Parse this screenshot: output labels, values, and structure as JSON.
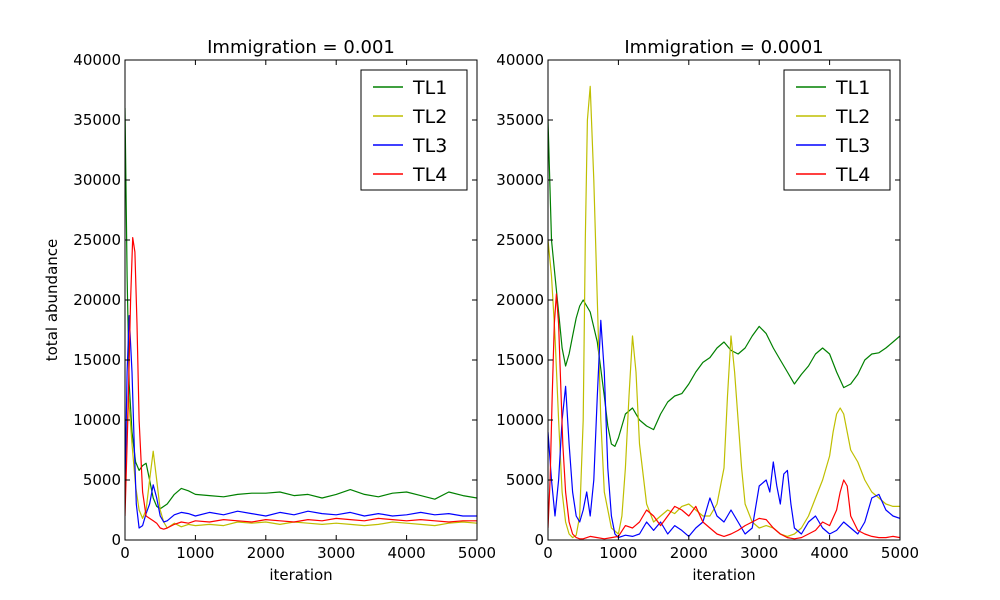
{
  "figure": {
    "ylabel": "total abundance"
  },
  "legend_colors": {
    "TL1": "#008000",
    "TL2": "#bfbf00",
    "TL3": "#0000ff",
    "TL4": "#ff0000"
  },
  "chart_data": [
    {
      "type": "line",
      "title": "Immigration = 0.001",
      "xlabel": "iteration",
      "ylabel": "total abundance",
      "xlim": [
        0,
        5000
      ],
      "ylim": [
        0,
        40000
      ],
      "xticks": [
        "0",
        "1000",
        "2000",
        "3000",
        "4000",
        "5000"
      ],
      "yticks": [
        "0",
        "5000",
        "10000",
        "15000",
        "20000",
        "25000",
        "30000",
        "35000",
        "40000"
      ],
      "legend_position": "top-right",
      "grid": false,
      "series": [
        {
          "name": "TL1",
          "color": "#008000",
          "x": [
            0,
            30,
            60,
            100,
            150,
            200,
            250,
            300,
            350,
            400,
            450,
            500,
            600,
            700,
            800,
            900,
            1000,
            1200,
            1400,
            1600,
            1800,
            2000,
            2200,
            2400,
            2600,
            2800,
            3000,
            3200,
            3400,
            3600,
            3800,
            4000,
            4200,
            4400,
            4600,
            4800,
            5000
          ],
          "y": [
            36000,
            22000,
            13000,
            9000,
            6500,
            5800,
            6200,
            6400,
            5000,
            3500,
            2800,
            2600,
            3000,
            3800,
            4300,
            4100,
            3800,
            3700,
            3600,
            3800,
            3900,
            3900,
            4000,
            3700,
            3800,
            3500,
            3800,
            4200,
            3800,
            3600,
            3900,
            4000,
            3700,
            3400,
            4000,
            3700,
            3500
          ]
        },
        {
          "name": "TL2",
          "color": "#bfbf00",
          "x": [
            0,
            50,
            100,
            150,
            200,
            250,
            300,
            350,
            400,
            450,
            500,
            550,
            600,
            700,
            800,
            900,
            1000,
            1200,
            1400,
            1600,
            1800,
            2000,
            2200,
            2400,
            2600,
            2800,
            3000,
            3200,
            3400,
            3600,
            3800,
            4000,
            4200,
            4400,
            4600,
            4800,
            5000
          ],
          "y": [
            4500,
            12000,
            8000,
            4500,
            2500,
            1800,
            2500,
            5000,
            7400,
            5000,
            2500,
            1500,
            1000,
            1400,
            1100,
            1300,
            1200,
            1300,
            1200,
            1500,
            1400,
            1500,
            1300,
            1500,
            1400,
            1300,
            1400,
            1300,
            1200,
            1300,
            1500,
            1400,
            1300,
            1200,
            1400,
            1500,
            1400
          ]
        },
        {
          "name": "TL3",
          "color": "#0000ff",
          "x": [
            0,
            30,
            60,
            100,
            130,
            160,
            200,
            250,
            300,
            350,
            400,
            450,
            500,
            550,
            600,
            700,
            800,
            900,
            1000,
            1200,
            1400,
            1600,
            1800,
            2000,
            2200,
            2400,
            2600,
            2800,
            3000,
            3200,
            3400,
            3600,
            3800,
            4000,
            4200,
            4400,
            4600,
            4800,
            5000
          ],
          "y": [
            4000,
            14000,
            18700,
            14000,
            8000,
            3000,
            1000,
            1200,
            2200,
            3000,
            4600,
            3500,
            2000,
            1500,
            1600,
            2100,
            2300,
            2200,
            2000,
            2300,
            2100,
            2400,
            2200,
            2000,
            2300,
            2100,
            2400,
            2200,
            2100,
            2300,
            2000,
            2200,
            2000,
            2100,
            2300,
            2100,
            2200,
            2000,
            2000
          ]
        },
        {
          "name": "TL4",
          "color": "#ff0000",
          "x": [
            0,
            40,
            80,
            110,
            140,
            170,
            200,
            250,
            300,
            350,
            400,
            450,
            500,
            550,
            600,
            700,
            800,
            900,
            1000,
            1200,
            1400,
            1600,
            1800,
            2000,
            2200,
            2400,
            2600,
            2800,
            3000,
            3200,
            3400,
            3600,
            3800,
            4000,
            4200,
            4400,
            4600,
            4800,
            5000
          ],
          "y": [
            2000,
            10000,
            20000,
            25200,
            24000,
            18000,
            10000,
            4000,
            2000,
            1800,
            1600,
            1400,
            1000,
            900,
            1000,
            1300,
            1500,
            1400,
            1600,
            1500,
            1700,
            1600,
            1500,
            1700,
            1600,
            1500,
            1700,
            1600,
            1800,
            1700,
            1600,
            1800,
            1700,
            1600,
            1700,
            1600,
            1500,
            1600,
            1600
          ]
        }
      ]
    },
    {
      "type": "line",
      "title": "Immigration = 0.0001",
      "xlabel": "iteration",
      "ylabel": "",
      "xlim": [
        0,
        5000
      ],
      "ylim": [
        0,
        40000
      ],
      "xticks": [
        "0",
        "1000",
        "2000",
        "3000",
        "4000",
        "5000"
      ],
      "yticks": [
        "0",
        "5000",
        "10000",
        "15000",
        "20000",
        "25000",
        "30000",
        "35000",
        "40000"
      ],
      "legend_position": "top-right",
      "grid": false,
      "series": [
        {
          "name": "TL1",
          "color": "#008000",
          "x": [
            0,
            50,
            100,
            150,
            200,
            250,
            300,
            350,
            400,
            450,
            500,
            550,
            600,
            700,
            800,
            850,
            900,
            950,
            1000,
            1100,
            1200,
            1300,
            1400,
            1500,
            1600,
            1700,
            1800,
            1900,
            2000,
            2100,
            2200,
            2300,
            2400,
            2500,
            2600,
            2700,
            2800,
            2900,
            3000,
            3100,
            3200,
            3300,
            3400,
            3500,
            3600,
            3700,
            3800,
            3900,
            4000,
            4100,
            4200,
            4300,
            4400,
            4500,
            4600,
            4700,
            4800,
            4900,
            5000
          ],
          "y": [
            35000,
            25000,
            22000,
            19000,
            16000,
            14500,
            15500,
            17000,
            18500,
            19500,
            20000,
            19500,
            19000,
            16500,
            12000,
            9500,
            8000,
            7800,
            8500,
            10500,
            11000,
            10000,
            9500,
            9200,
            10500,
            11500,
            12000,
            12200,
            13000,
            14000,
            14800,
            15200,
            16000,
            16500,
            15800,
            15500,
            16000,
            17000,
            17800,
            17200,
            16000,
            15000,
            14000,
            13000,
            13800,
            14500,
            15500,
            16000,
            15500,
            14000,
            12700,
            13000,
            13800,
            15000,
            15500,
            15600,
            16000,
            16500,
            17000
          ]
        },
        {
          "name": "TL2",
          "color": "#bfbf00",
          "x": [
            0,
            50,
            100,
            150,
            200,
            250,
            300,
            350,
            400,
            450,
            500,
            530,
            560,
            600,
            650,
            700,
            750,
            800,
            900,
            1000,
            1050,
            1100,
            1150,
            1200,
            1250,
            1300,
            1400,
            1500,
            1600,
            1700,
            1800,
            1900,
            2000,
            2100,
            2200,
            2300,
            2400,
            2500,
            2550,
            2600,
            2650,
            2700,
            2750,
            2800,
            2900,
            3000,
            3100,
            3200,
            3300,
            3400,
            3500,
            3600,
            3700,
            3800,
            3900,
            4000,
            4050,
            4100,
            4150,
            4200,
            4250,
            4300,
            4400,
            4500,
            4600,
            4700,
            4800,
            4900,
            5000
          ],
          "y": [
            25000,
            22000,
            17000,
            10000,
            4000,
            1500,
            500,
            200,
            400,
            2000,
            10000,
            25000,
            35000,
            37800,
            30000,
            20000,
            10000,
            4000,
            1000,
            500,
            2000,
            6000,
            12000,
            17000,
            14000,
            8000,
            3000,
            1500,
            2000,
            2500,
            2200,
            2800,
            3000,
            2500,
            2000,
            2000,
            3000,
            6000,
            12000,
            17000,
            14000,
            10000,
            6000,
            3000,
            1500,
            1000,
            1200,
            1000,
            500,
            300,
            500,
            1000,
            2000,
            3500,
            5000,
            7000,
            9000,
            10500,
            11000,
            10500,
            9000,
            7500,
            6500,
            5000,
            4000,
            3500,
            3000,
            2800,
            2800
          ]
        },
        {
          "name": "TL3",
          "color": "#0000ff",
          "x": [
            0,
            50,
            100,
            150,
            200,
            250,
            300,
            350,
            400,
            450,
            500,
            550,
            600,
            650,
            700,
            750,
            800,
            850,
            900,
            950,
            1000,
            1100,
            1200,
            1300,
            1400,
            1500,
            1600,
            1700,
            1800,
            1900,
            2000,
            2100,
            2200,
            2300,
            2400,
            2500,
            2600,
            2700,
            2800,
            2900,
            3000,
            3100,
            3150,
            3200,
            3250,
            3300,
            3350,
            3400,
            3450,
            3500,
            3600,
            3700,
            3800,
            3900,
            4000,
            4100,
            4200,
            4300,
            4400,
            4500,
            4600,
            4700,
            4800,
            4900,
            5000
          ],
          "y": [
            9000,
            5000,
            2000,
            5000,
            10000,
            12800,
            8000,
            4000,
            2000,
            1500,
            2500,
            4000,
            2000,
            5000,
            12000,
            18300,
            14000,
            6000,
            2000,
            500,
            200,
            400,
            300,
            500,
            1500,
            800,
            1500,
            500,
            1200,
            800,
            300,
            1000,
            1500,
            3500,
            2000,
            1500,
            2500,
            1500,
            500,
            1000,
            4500,
            5000,
            4000,
            6500,
            4500,
            3000,
            5500,
            5800,
            3000,
            1000,
            500,
            1500,
            2000,
            1000,
            500,
            800,
            1500,
            1000,
            500,
            1500,
            3500,
            3800,
            2500,
            2000,
            1800
          ]
        },
        {
          "name": "TL4",
          "color": "#ff0000",
          "x": [
            0,
            30,
            60,
            90,
            120,
            150,
            180,
            210,
            250,
            300,
            350,
            400,
            450,
            500,
            600,
            700,
            800,
            900,
            1000,
            1100,
            1200,
            1300,
            1400,
            1500,
            1600,
            1700,
            1800,
            1900,
            2000,
            2100,
            2200,
            2300,
            2400,
            2500,
            2600,
            2700,
            2800,
            2900,
            3000,
            3100,
            3200,
            3300,
            3400,
            3500,
            3600,
            3700,
            3800,
            3900,
            4000,
            4100,
            4150,
            4200,
            4250,
            4300,
            4400,
            4500,
            4600,
            4700,
            4800,
            4900,
            5000
          ],
          "y": [
            1000,
            5000,
            12000,
            18000,
            20500,
            18000,
            13000,
            8000,
            4000,
            1500,
            500,
            200,
            100,
            100,
            300,
            200,
            100,
            200,
            300,
            1200,
            1000,
            1500,
            2500,
            2000,
            1200,
            2000,
            2800,
            2500,
            2000,
            2800,
            1500,
            1000,
            500,
            300,
            500,
            800,
            1200,
            1500,
            1800,
            1700,
            1000,
            500,
            200,
            100,
            200,
            500,
            800,
            1500,
            1200,
            2500,
            4000,
            5000,
            4500,
            2000,
            800,
            500,
            300,
            200,
            200,
            300,
            200
          ]
        }
      ]
    }
  ]
}
